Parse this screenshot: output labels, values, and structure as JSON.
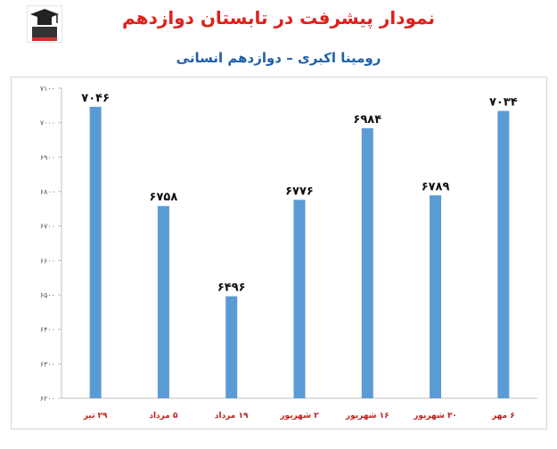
{
  "header": {
    "title": "نمودار پیشرفت در تابستان دوازدهم",
    "subtitle": "رومینا اکبری – دوازدهم انسانی"
  },
  "chart_data": {
    "type": "bar",
    "title": "نمودار پیشرفت در تابستان دوازدهم",
    "subtitle": "رومینا اکبری – دوازدهم انسانی",
    "categories": [
      "۲۹ تیر",
      "۵ مرداد",
      "۱۹ مرداد",
      "۲ شهریور",
      "۱۶ شهریور",
      "۳۰ شهریور",
      "۶ مهر"
    ],
    "values": [
      7046,
      6758,
      6496,
      6776,
      6984,
      6789,
      7034
    ],
    "value_labels": [
      "۷۰۴۶",
      "۶۷۵۸",
      "۶۴۹۶",
      "۶۷۷۶",
      "۶۹۸۴",
      "۶۷۸۹",
      "۷۰۳۴"
    ],
    "ylim": [
      6200,
      7100
    ],
    "yticks": [
      6200,
      6300,
      6400,
      6500,
      6600,
      6700,
      6800,
      6900,
      7000,
      7100
    ],
    "ytick_labels": [
      "۶۲۰۰",
      "۶۳۰۰",
      "۶۴۰۰",
      "۶۵۰۰",
      "۶۶۰۰",
      "۶۷۰۰",
      "۶۸۰۰",
      "۶۹۰۰",
      "۷۰۰۰",
      "۷۱۰۰"
    ],
    "bar_color": "#5b9bd5",
    "grid": false,
    "legend": "none"
  }
}
